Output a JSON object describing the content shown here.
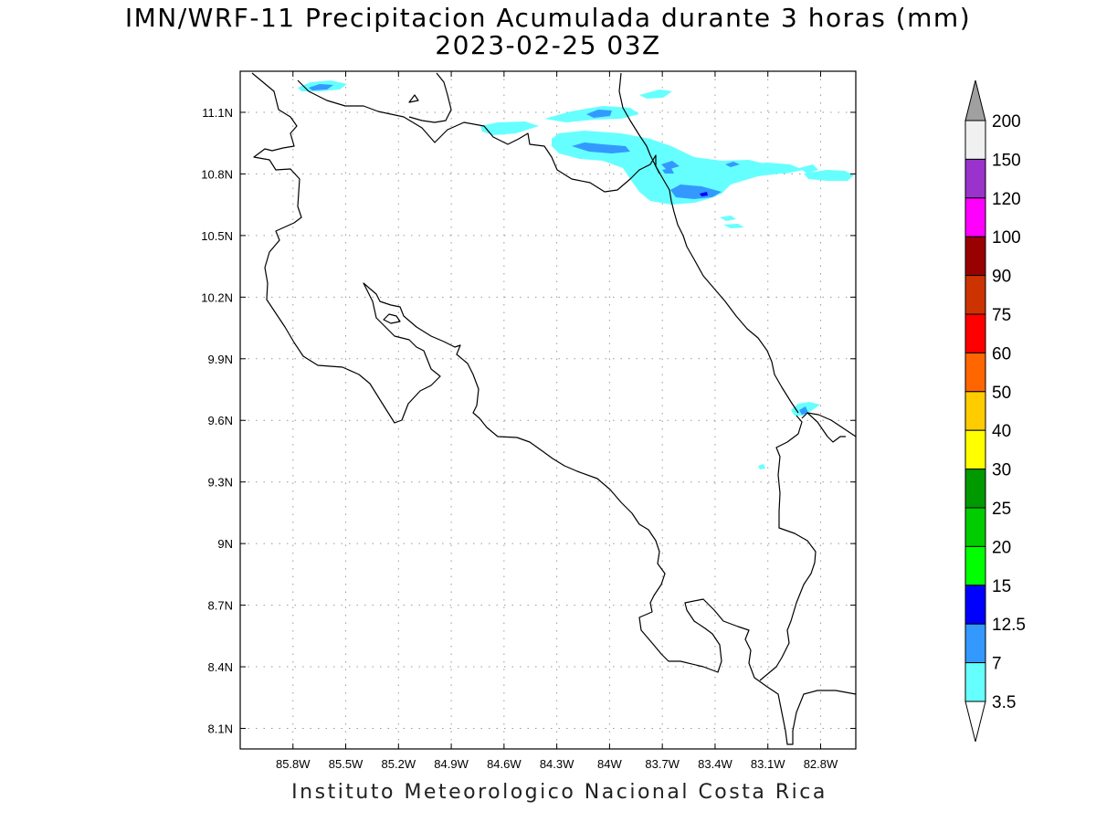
{
  "title": {
    "line1": "IMN/WRF-11 Precipitacion Acumulada durante 3 horas (mm)",
    "line2": "2023-02-25 03Z"
  },
  "footer": "Instituto Meteorologico Nacional Costa Rica",
  "map": {
    "lon_range": [
      -86.1,
      -82.6
    ],
    "lat_range": [
      8.0,
      11.3
    ],
    "x_ticks": [
      "85.8W",
      "85.5W",
      "85.2W",
      "84.9W",
      "84.6W",
      "84.3W",
      "84W",
      "83.7W",
      "83.4W",
      "83.1W",
      "82.8W"
    ],
    "x_tick_values": [
      -85.8,
      -85.5,
      -85.2,
      -84.9,
      -84.6,
      -84.3,
      -84.0,
      -83.7,
      -83.4,
      -83.1,
      -82.8
    ],
    "y_ticks": [
      "11.1N",
      "10.8N",
      "10.5N",
      "10.2N",
      "9.9N",
      "9.6N",
      "9.3N",
      "9N",
      "8.7N",
      "8.4N",
      "8.1N"
    ],
    "y_tick_values": [
      11.1,
      10.8,
      10.5,
      10.2,
      9.9,
      9.6,
      9.3,
      9.0,
      8.7,
      8.4,
      8.1
    ],
    "grid": "dotted",
    "frame_color": "#000000",
    "coast_color": "#000000"
  },
  "legend": {
    "labels": [
      "200",
      "150",
      "120",
      "100",
      "90",
      "75",
      "60",
      "50",
      "40",
      "30",
      "25",
      "20",
      "15",
      "12.5",
      "7",
      "3.5"
    ],
    "colors": [
      "#f0f0f0",
      "#9933cc",
      "#ff00ff",
      "#990000",
      "#cc3300",
      "#ff0000",
      "#ff6600",
      "#ffcc00",
      "#ffff00",
      "#009900",
      "#00cc00",
      "#00ff00",
      "#0000ff",
      "#3399ff",
      "#66ffff"
    ],
    "top_arrow_color": "#a0a0a0",
    "bottom_arrow_color": "#ffffff"
  },
  "precip_colors": {
    "light": "#66ffff",
    "medium": "#3399ff",
    "heavy": "#0000ff"
  }
}
